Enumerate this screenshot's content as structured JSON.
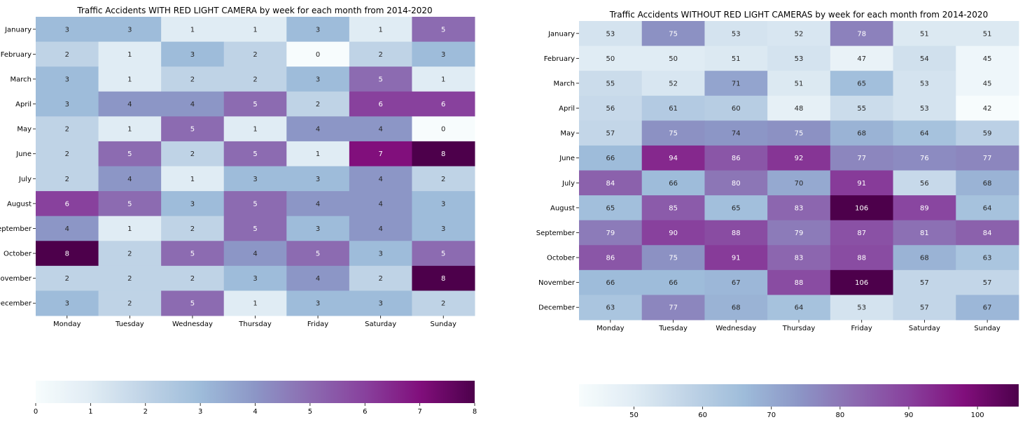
{
  "chart_data": [
    {
      "type": "heatmap",
      "title": "Traffic Accidents WITH RED LIGHT CAMERA by week for each month from 2014-2020",
      "rows": [
        "January",
        "February",
        "March",
        "April",
        "May",
        "June",
        "July",
        "August",
        "September",
        "October",
        "November",
        "December"
      ],
      "columns": [
        "Monday",
        "Tuesday",
        "Wednesday",
        "Thursday",
        "Friday",
        "Saturday",
        "Sunday"
      ],
      "values": [
        [
          3,
          3,
          1,
          1,
          3,
          1,
          5
        ],
        [
          2,
          1,
          3,
          2,
          0,
          2,
          3
        ],
        [
          3,
          1,
          2,
          2,
          3,
          5,
          1
        ],
        [
          3,
          4,
          4,
          5,
          2,
          6,
          6
        ],
        [
          2,
          1,
          5,
          1,
          4,
          4,
          0
        ],
        [
          2,
          5,
          2,
          5,
          1,
          7,
          8
        ],
        [
          2,
          4,
          1,
          3,
          3,
          4,
          2
        ],
        [
          6,
          5,
          3,
          5,
          4,
          4,
          3
        ],
        [
          4,
          1,
          2,
          5,
          3,
          4,
          3
        ],
        [
          8,
          2,
          5,
          4,
          5,
          3,
          5
        ],
        [
          2,
          2,
          2,
          3,
          4,
          2,
          8
        ],
        [
          3,
          2,
          5,
          1,
          3,
          3,
          2
        ]
      ],
      "colormap": "BuPu",
      "vmin": 0,
      "vmax": 8,
      "colorbar_ticks": [
        0,
        1,
        2,
        3,
        4,
        5,
        6,
        7,
        8
      ],
      "colorbar_orientation": "horizontal",
      "annotated": true
    },
    {
      "type": "heatmap",
      "title": "Traffic Accidents WITHOUT RED LIGHT CAMERAS by week for each month from 2014-2020",
      "rows": [
        "January",
        "February",
        "March",
        "April",
        "May",
        "June",
        "July",
        "August",
        "September",
        "October",
        "November",
        "December"
      ],
      "columns": [
        "Monday",
        "Tuesday",
        "Wednesday",
        "Thursday",
        "Friday",
        "Saturday",
        "Sunday"
      ],
      "values": [
        [
          53,
          75,
          53,
          52,
          78,
          51,
          51
        ],
        [
          50,
          50,
          51,
          53,
          47,
          54,
          45
        ],
        [
          55,
          52,
          71,
          51,
          65,
          53,
          45
        ],
        [
          56,
          61,
          60,
          48,
          55,
          53,
          42
        ],
        [
          57,
          75,
          74,
          75,
          68,
          64,
          59
        ],
        [
          66,
          94,
          86,
          92,
          77,
          76,
          77
        ],
        [
          84,
          66,
          80,
          70,
          91,
          56,
          68
        ],
        [
          65,
          85,
          65,
          83,
          106,
          89,
          64
        ],
        [
          79,
          90,
          88,
          79,
          87,
          81,
          84
        ],
        [
          86,
          75,
          91,
          83,
          88,
          68,
          63
        ],
        [
          66,
          66,
          67,
          88,
          106,
          57,
          57
        ],
        [
          63,
          77,
          68,
          64,
          53,
          57,
          67
        ]
      ],
      "colormap": "BuPu",
      "vmin": 42,
      "vmax": 106,
      "colorbar_ticks": [
        50,
        60,
        70,
        80,
        90,
        100
      ],
      "colorbar_orientation": "horizontal",
      "annotated": true
    }
  ],
  "colormap_stops": [
    "#f7fcfd",
    "#e0ecf4",
    "#bfd3e6",
    "#9ebcda",
    "#8c96c6",
    "#8c6bb1",
    "#88419d",
    "#810f7c",
    "#4d004b"
  ]
}
